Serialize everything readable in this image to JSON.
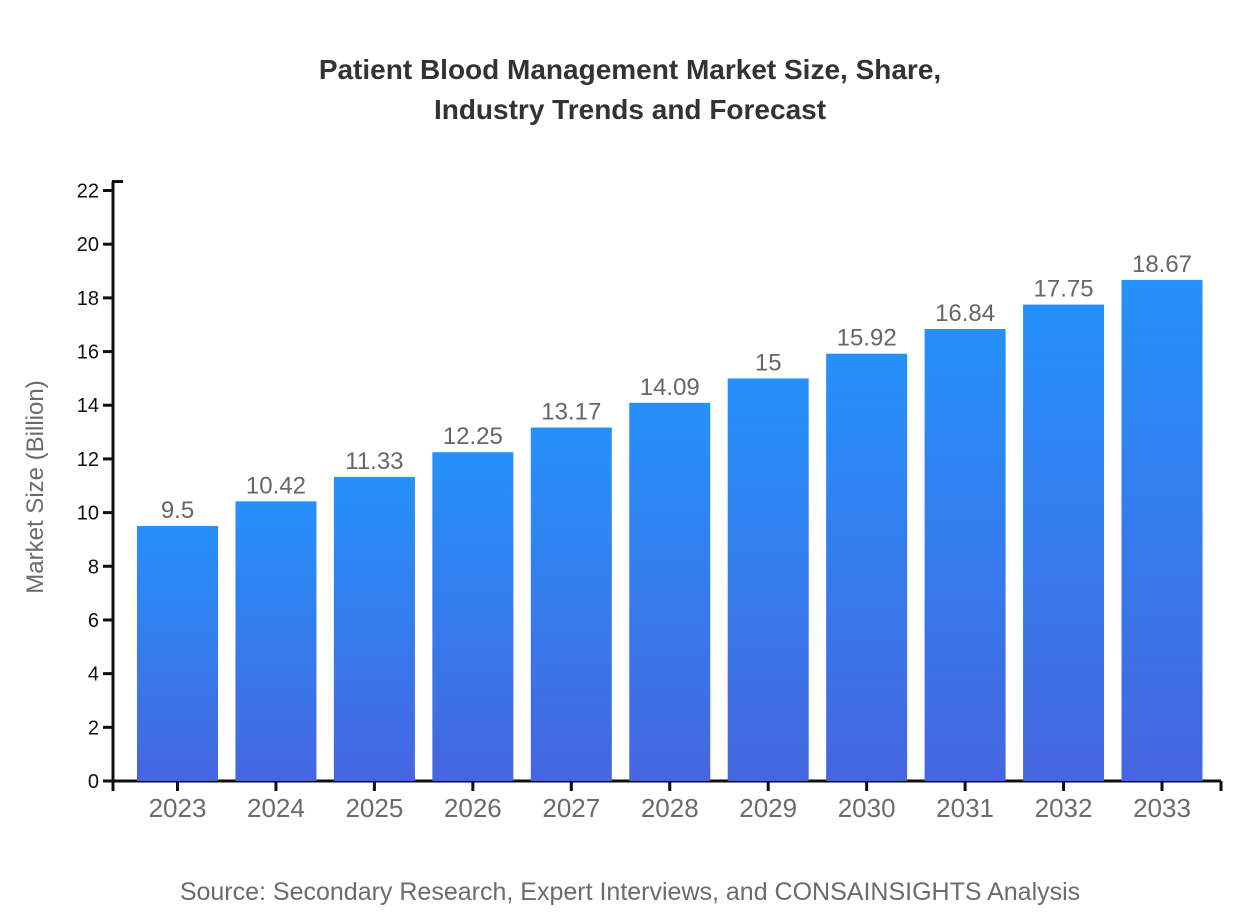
{
  "title": {
    "line1": "Patient Blood Management Market Size, Share,",
    "line2": "Industry Trends and Forecast"
  },
  "footer": {
    "source_text": "Source: Secondary Research, Expert Interviews, and CONSAINSIGHTS Analysis"
  },
  "colors": {
    "title": "#333333",
    "axis": "#0f0f0f",
    "y_tick_label": "#0f0f0f",
    "x_tick_label": "#6b6b6b",
    "value_label": "#666666",
    "bar_gradient_top": "#2591fb",
    "bar_gradient_bottom": "#4566e0",
    "background": "#ffffff"
  },
  "chart_data": {
    "type": "bar",
    "title": "Patient Blood Management Market Size, Share, Industry Trends and Forecast",
    "xlabel": "",
    "ylabel": "Market Size (Billion)",
    "categories": [
      "2023",
      "2024",
      "2025",
      "2026",
      "2027",
      "2028",
      "2029",
      "2030",
      "2031",
      "2032",
      "2033"
    ],
    "values": [
      9.5,
      10.42,
      11.33,
      12.25,
      13.17,
      14.09,
      15,
      15.92,
      16.84,
      17.75,
      18.67
    ],
    "value_labels": [
      "9.5",
      "10.42",
      "11.33",
      "12.25",
      "13.17",
      "14.09",
      "15",
      "15.92",
      "16.84",
      "17.75",
      "18.67"
    ],
    "ylim": [
      0,
      22
    ],
    "yticks": [
      0,
      2,
      4,
      6,
      8,
      10,
      12,
      14,
      16,
      18,
      20,
      22
    ],
    "grid": false,
    "legend_position": "none",
    "bar_color_top": "#2591fb",
    "bar_color_bottom": "#4566e0"
  }
}
